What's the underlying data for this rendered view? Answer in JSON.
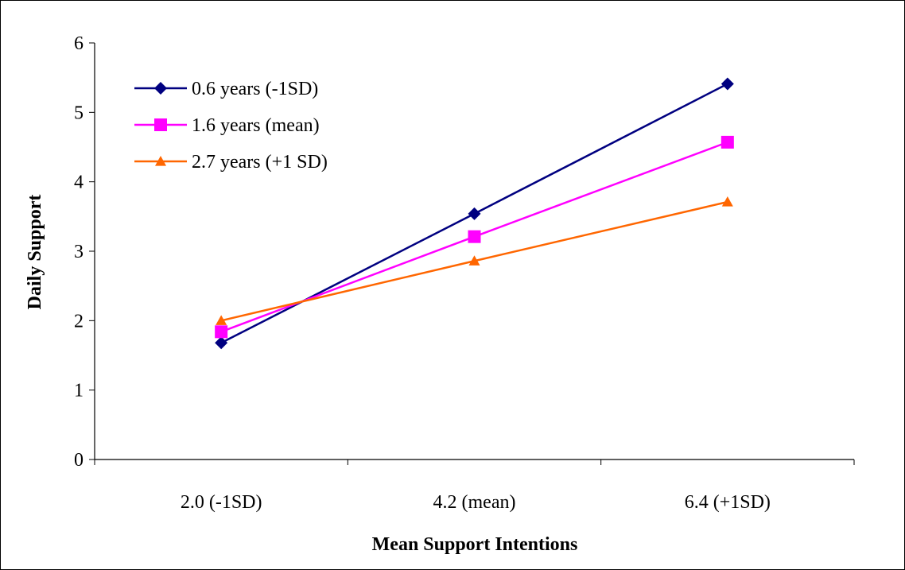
{
  "chart_data": {
    "type": "line",
    "xlabel": "Mean Support Intentions",
    "ylabel": "Daily Support",
    "categories": [
      "2.0 (-1SD)",
      "4.2 (mean)",
      "6.4 (+1SD)"
    ],
    "ylim": [
      0,
      6
    ],
    "yticks": [
      "0",
      "1",
      "2",
      "3",
      "4",
      "5",
      "6"
    ],
    "grid": false,
    "legend_position": "top-left",
    "series": [
      {
        "name": "0.6 years (-1SD)",
        "values": [
          1.68,
          3.54,
          5.41
        ],
        "color": "#000080",
        "marker": "diamond"
      },
      {
        "name": "1.6 years (mean)",
        "values": [
          1.84,
          3.21,
          4.57
        ],
        "color": "#FF00FF",
        "marker": "square"
      },
      {
        "name": "2.7 years (+1 SD)",
        "values": [
          2.0,
          2.86,
          3.71
        ],
        "color": "#FF6600",
        "marker": "triangle"
      }
    ]
  }
}
